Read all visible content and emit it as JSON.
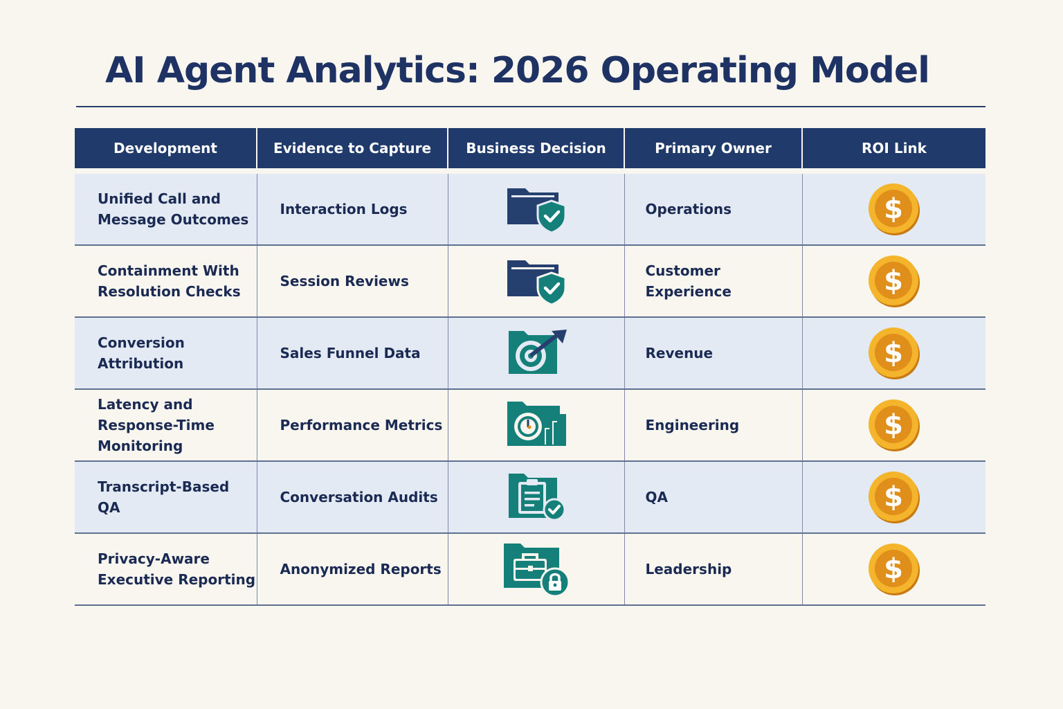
{
  "title": "AI Agent Analytics: 2026 Operating Model",
  "colors": {
    "header_bg": "#203a6b",
    "title": "#1e3263",
    "row_shade": "#e3eaf4",
    "page_bg": "#f9f6f0",
    "icon_navy": "#253f6e",
    "icon_teal": "#15807a",
    "coin_gold": "#f2a51c"
  },
  "table": {
    "headers": [
      "Development",
      "Evidence to Capture",
      "Business Decision",
      "Primary Owner",
      "ROI Link"
    ],
    "rows": [
      {
        "development": "Unified Call and Message Outcomes",
        "evidence": "Interaction Logs",
        "decision_icon": "folder-shield-check-icon",
        "owner": "Operations",
        "roi_icon": "dollar-coin-icon"
      },
      {
        "development": "Containment With Resolution Checks",
        "evidence": "Session Reviews",
        "decision_icon": "folder-shield-check-icon",
        "owner": "Customer Experience",
        "roi_icon": "dollar-coin-icon"
      },
      {
        "development": "Conversion Attribution",
        "evidence": "Sales Funnel Data",
        "decision_icon": "target-arrow-icon",
        "owner": "Revenue",
        "roi_icon": "dollar-coin-icon"
      },
      {
        "development": "Latency and Response-Time Monitoring",
        "evidence": "Performance Metrics",
        "decision_icon": "clock-bar-chart-icon",
        "owner": "Engineering",
        "roi_icon": "dollar-coin-icon"
      },
      {
        "development": "Transcript-Based QA",
        "evidence": "Conversation Audits",
        "decision_icon": "clipboard-check-icon",
        "owner": "QA",
        "roi_icon": "dollar-coin-icon"
      },
      {
        "development": "Privacy-Aware Executive Reporting",
        "evidence": "Anonymized Reports",
        "decision_icon": "briefcase-lock-icon",
        "owner": "Leadership",
        "roi_icon": "dollar-coin-icon"
      }
    ]
  }
}
